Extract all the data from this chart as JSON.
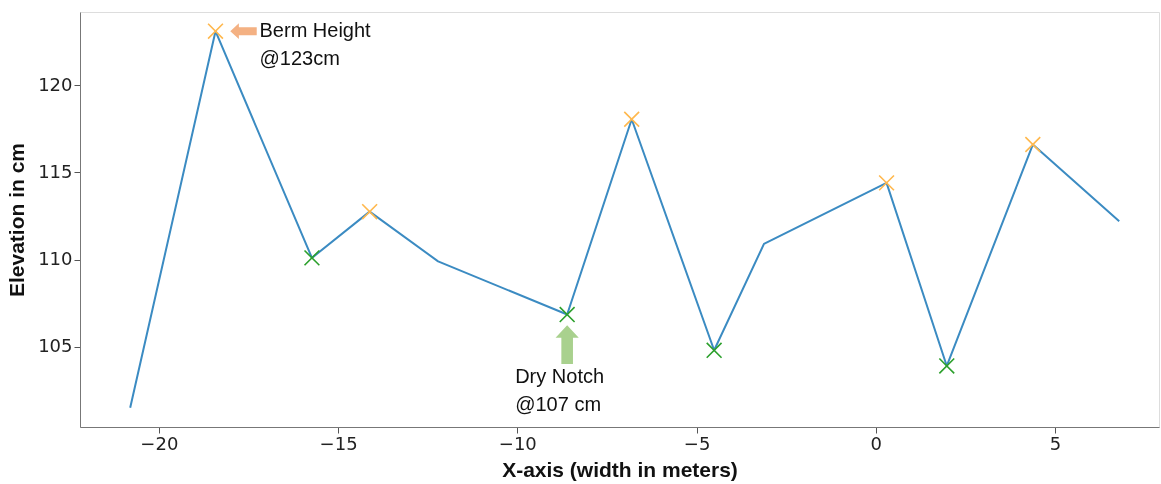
{
  "chart_data": {
    "type": "line",
    "xlabel": "X-axis (width in meters)",
    "ylabel": "Elevation in cm",
    "xlim": [
      -22.2,
      7.9
    ],
    "ylim": [
      100.4,
      124.2
    ],
    "xticks": [
      -20,
      -15,
      -10,
      -5,
      0,
      5
    ],
    "yticks": [
      105,
      110,
      115,
      120
    ],
    "grid": false,
    "legend": false,
    "series": [
      {
        "color": "#3b8bc2",
        "marker": "none",
        "x": [
          -20.8,
          -18.42,
          -15.73,
          -14.12,
          -12.21,
          -8.61,
          -6.81,
          -4.51,
          -3.12,
          0.3,
          1.98,
          4.38,
          6.79
        ],
        "values": [
          101.5,
          123.1,
          110.1,
          112.75,
          109.9,
          106.85,
          118.05,
          104.8,
          110.9,
          114.4,
          103.9,
          116.6,
          112.2
        ]
      },
      {
        "type": "scatter",
        "color": "#ffb84d",
        "marker": "cross",
        "x": [
          -18.42,
          -14.12,
          -6.81,
          0.3,
          4.38
        ],
        "values": [
          123.1,
          112.75,
          118.05,
          114.4,
          116.6
        ]
      },
      {
        "type": "scatter",
        "color": "#2ca02c",
        "marker": "cross",
        "x": [
          -15.73,
          -8.61,
          -4.51,
          1.98
        ],
        "values": [
          110.1,
          106.85,
          104.8,
          103.9
        ]
      }
    ],
    "annotations": [
      {
        "text": "Berm Height\n@123cm",
        "x": -18.42,
        "y": 123.1
      },
      {
        "text": "Dry Notch\n@107 cm",
        "x": -8.61,
        "y": 106.85
      }
    ]
  }
}
